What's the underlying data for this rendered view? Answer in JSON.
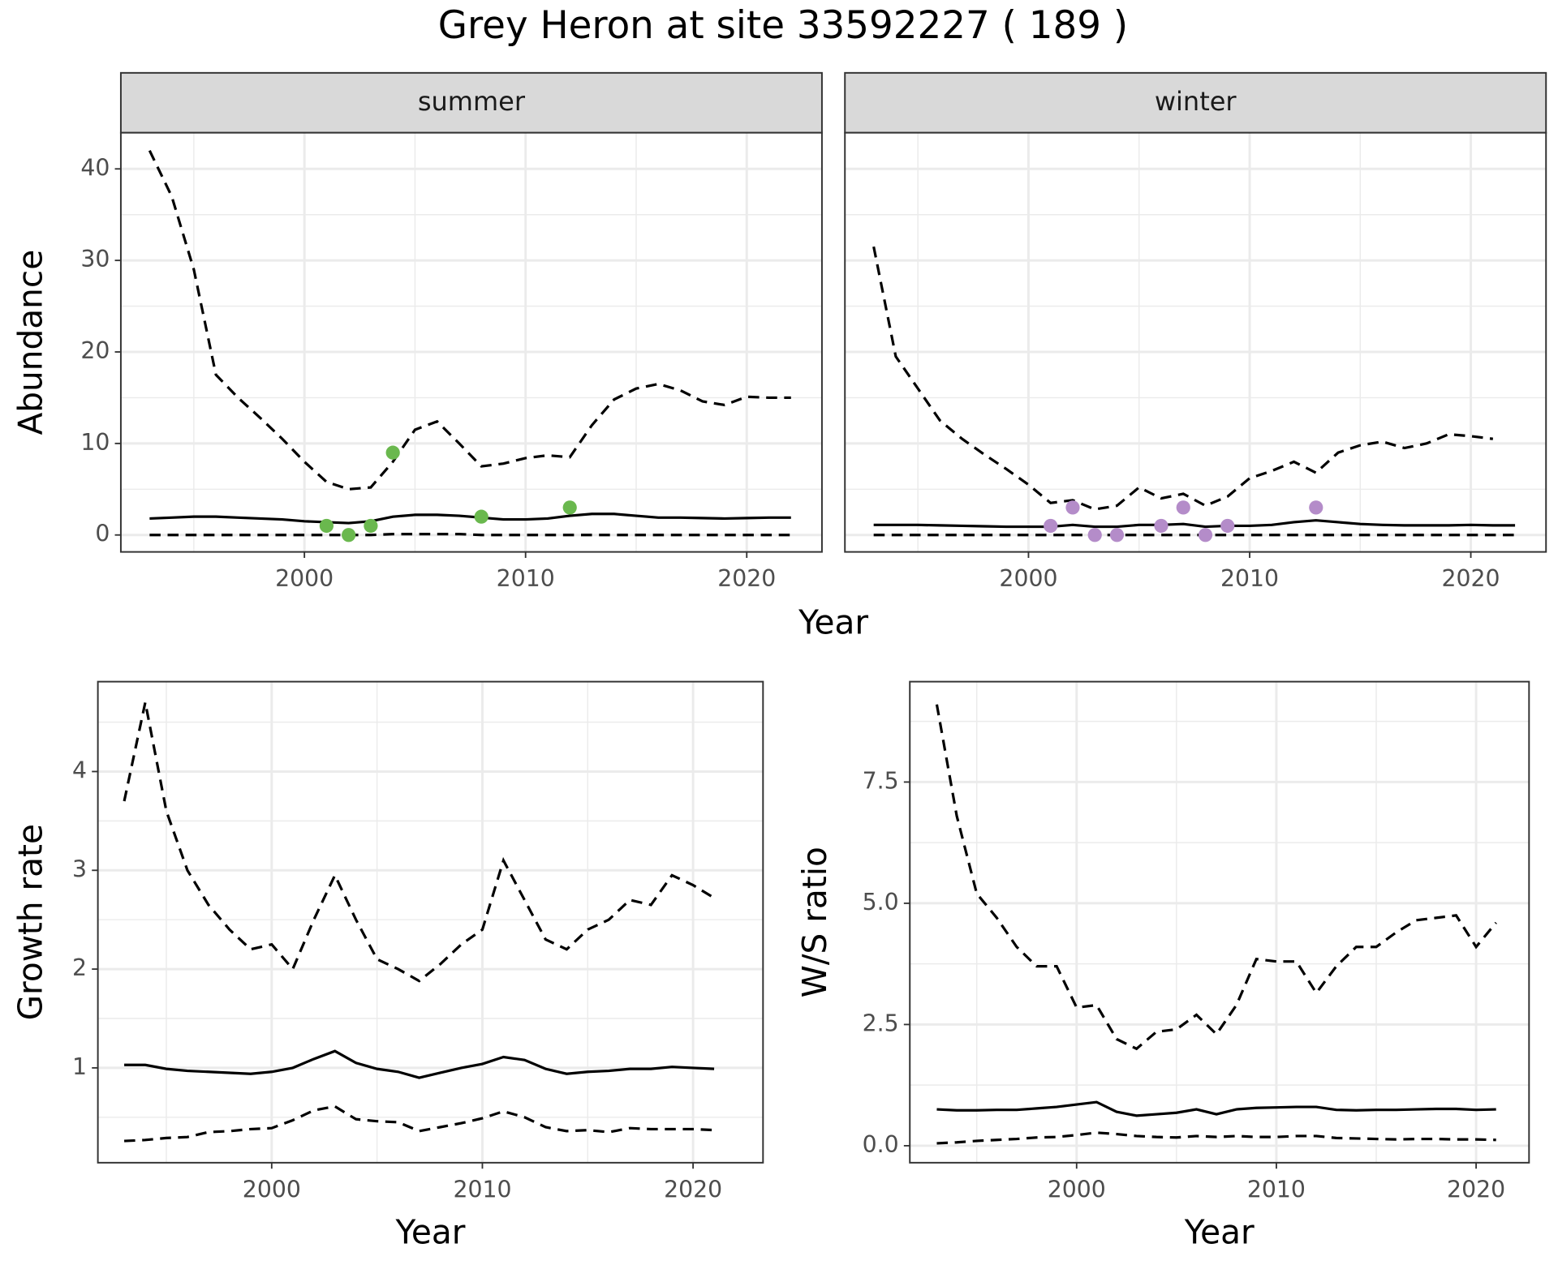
{
  "title": "Grey Heron at site 33592227 ( 189 )",
  "chart_data": [
    {
      "type": "line",
      "xlabel": "Year",
      "ylabel": "Abundance",
      "xlim": [
        1991.7,
        2023.4
      ],
      "xticks": [
        2000,
        2010,
        2020
      ],
      "ylim": [
        -1.85,
        43.95
      ],
      "yticks": [
        0,
        10,
        20,
        30,
        40
      ],
      "grid": true,
      "facets": [
        {
          "title": "summer",
          "series": [
            {
              "style": "dashed",
              "color": "#000000",
              "x": [
                1993,
                1994,
                1995,
                1996,
                1997,
                1998,
                1999,
                2000,
                2001,
                2002,
                2003,
                2004,
                2005,
                2006,
                2007,
                2008,
                2009,
                2010,
                2011,
                2012,
                2013,
                2014,
                2015,
                2016,
                2017,
                2018,
                2019,
                2020,
                2021,
                2022
              ],
              "values": [
                42,
                37,
                29,
                17.5,
                15,
                12.8,
                10.5,
                8,
                5.8,
                5,
                5.2,
                8,
                11.5,
                12.4,
                10,
                7.5,
                7.8,
                8.4,
                8.7,
                8.5,
                12,
                14.8,
                16,
                16.5,
                15.8,
                14.6,
                14.2,
                15.1,
                15,
                15
              ]
            },
            {
              "style": "solid",
              "color": "#000000",
              "x": [
                1993,
                1994,
                1995,
                1996,
                1997,
                1998,
                1999,
                2000,
                2001,
                2002,
                2003,
                2004,
                2005,
                2006,
                2007,
                2008,
                2009,
                2010,
                2011,
                2012,
                2013,
                2014,
                2015,
                2016,
                2017,
                2018,
                2019,
                2020,
                2021,
                2022
              ],
              "values": [
                1.8,
                1.9,
                2,
                2,
                1.9,
                1.8,
                1.7,
                1.5,
                1.4,
                1.3,
                1.5,
                2,
                2.2,
                2.2,
                2.1,
                1.9,
                1.7,
                1.7,
                1.8,
                2.1,
                2.3,
                2.3,
                2.1,
                1.9,
                1.9,
                1.85,
                1.8,
                1.85,
                1.9,
                1.9
              ]
            },
            {
              "style": "dashed",
              "color": "#000000",
              "x": [
                1993,
                1994,
                1995,
                1996,
                1997,
                1998,
                1999,
                2000,
                2001,
                2002,
                2003,
                2004,
                2005,
                2006,
                2007,
                2008,
                2009,
                2010,
                2011,
                2012,
                2013,
                2014,
                2015,
                2016,
                2017,
                2018,
                2019,
                2020,
                2021,
                2022
              ],
              "values": [
                0,
                0,
                0,
                0,
                0,
                0,
                0,
                0,
                0,
                0,
                0,
                0.1,
                0.1,
                0.1,
                0.1,
                0,
                0,
                0,
                0,
                0,
                0,
                0,
                0,
                0,
                0,
                0,
                0,
                0,
                0,
                0
              ]
            },
            {
              "style": "points",
              "color": "#6ab84e",
              "x": [
                2001,
                2002,
                2003,
                2004,
                2008,
                2012
              ],
              "values": [
                1,
                0,
                1,
                9,
                2,
                3
              ]
            }
          ]
        },
        {
          "title": "winter",
          "series": [
            {
              "style": "dashed",
              "color": "#000000",
              "x": [
                1993,
                1994,
                1995,
                1996,
                1997,
                1998,
                1999,
                2000,
                2001,
                2002,
                2003,
                2004,
                2005,
                2006,
                2007,
                2008,
                2009,
                2010,
                2011,
                2012,
                2013,
                2014,
                2015,
                2016,
                2017,
                2018,
                2019,
                2020,
                2021
              ],
              "values": [
                31.5,
                19.5,
                16,
                12.5,
                10.5,
                8.8,
                7.2,
                5.5,
                3.5,
                3.8,
                2.8,
                3.2,
                5.2,
                4,
                4.5,
                3.2,
                4.2,
                6.2,
                7,
                8,
                6.8,
                9,
                9.8,
                10.2,
                9.5,
                10,
                11,
                10.8,
                10.5
              ]
            },
            {
              "style": "solid",
              "color": "#000000",
              "x": [
                1993,
                1994,
                1995,
                1996,
                1997,
                1998,
                1999,
                2000,
                2001,
                2002,
                2003,
                2004,
                2005,
                2006,
                2007,
                2008,
                2009,
                2010,
                2011,
                2012,
                2013,
                2014,
                2015,
                2016,
                2017,
                2018,
                2019,
                2020,
                2021,
                2022
              ],
              "values": [
                1.1,
                1.1,
                1.1,
                1.05,
                1,
                0.95,
                0.9,
                0.9,
                0.9,
                1.1,
                0.9,
                0.9,
                1.1,
                1.1,
                1.2,
                0.9,
                1,
                1,
                1.1,
                1.4,
                1.6,
                1.4,
                1.2,
                1.1,
                1.05,
                1.05,
                1.05,
                1.1,
                1.05,
                1.05
              ]
            },
            {
              "style": "dashed",
              "color": "#000000",
              "x": [
                1993,
                1994,
                1995,
                1996,
                1997,
                1998,
                1999,
                2000,
                2001,
                2002,
                2003,
                2004,
                2005,
                2006,
                2007,
                2008,
                2009,
                2010,
                2011,
                2012,
                2013,
                2014,
                2015,
                2016,
                2017,
                2018,
                2019,
                2020,
                2021,
                2022
              ],
              "values": [
                0,
                0,
                0,
                0,
                0,
                0,
                0,
                0,
                0,
                0,
                0,
                0,
                0,
                0,
                0,
                0,
                0,
                0,
                0,
                0,
                0,
                0,
                0,
                0,
                0,
                0,
                0,
                0,
                0,
                0
              ]
            },
            {
              "style": "points",
              "color": "#b48cc9",
              "x": [
                2001,
                2002,
                2003,
                2004,
                2006,
                2007,
                2008,
                2009,
                2013
              ],
              "values": [
                1,
                3,
                0,
                0,
                1,
                3,
                0,
                1,
                3
              ]
            }
          ]
        }
      ]
    },
    {
      "type": "line",
      "xlabel": "Year",
      "ylabel": "Growth rate",
      "xlim": [
        1991.75,
        2023.32
      ],
      "xticks": [
        2000,
        2010,
        2020
      ],
      "ylim": [
        0.04,
        4.91
      ],
      "yticks": [
        1,
        2,
        3,
        4
      ],
      "grid": true,
      "series": [
        {
          "style": "dashed",
          "color": "#000000",
          "x": [
            1993,
            1994,
            1995,
            1996,
            1997,
            1998,
            1999,
            2000,
            2001,
            2002,
            2003,
            2004,
            2005,
            2006,
            2007,
            2008,
            2009,
            2010,
            2011,
            2012,
            2013,
            2014,
            2015,
            2016,
            2017,
            2018,
            2019,
            2020,
            2021
          ],
          "values": [
            3.7,
            4.7,
            3.6,
            3.0,
            2.65,
            2.4,
            2.2,
            2.25,
            2.0,
            2.5,
            2.95,
            2.5,
            2.1,
            2.0,
            1.88,
            2.05,
            2.25,
            2.4,
            3.1,
            2.7,
            2.3,
            2.2,
            2.4,
            2.5,
            2.7,
            2.65,
            2.95,
            2.85,
            2.72
          ]
        },
        {
          "style": "solid",
          "color": "#000000",
          "x": [
            1993,
            1994,
            1995,
            1996,
            1997,
            1998,
            1999,
            2000,
            2001,
            2002,
            2003,
            2004,
            2005,
            2006,
            2007,
            2008,
            2009,
            2010,
            2011,
            2012,
            2013,
            2014,
            2015,
            2016,
            2017,
            2018,
            2019,
            2020,
            2021
          ],
          "values": [
            1.03,
            1.03,
            0.99,
            0.97,
            0.96,
            0.95,
            0.94,
            0.96,
            1.0,
            1.09,
            1.17,
            1.05,
            0.99,
            0.96,
            0.9,
            0.95,
            1.0,
            1.04,
            1.11,
            1.08,
            0.99,
            0.94,
            0.96,
            0.97,
            0.99,
            0.99,
            1.01,
            1.0,
            0.99
          ]
        },
        {
          "style": "dashed",
          "color": "#000000",
          "x": [
            1993,
            1994,
            1995,
            1996,
            1997,
            1998,
            1999,
            2000,
            2001,
            2002,
            2003,
            2004,
            2005,
            2006,
            2007,
            2008,
            2009,
            2010,
            2011,
            2012,
            2013,
            2014,
            2015,
            2016,
            2017,
            2018,
            2019,
            2020,
            2021
          ],
          "values": [
            0.26,
            0.27,
            0.29,
            0.3,
            0.35,
            0.36,
            0.38,
            0.39,
            0.47,
            0.57,
            0.61,
            0.48,
            0.46,
            0.45,
            0.36,
            0.4,
            0.44,
            0.49,
            0.56,
            0.5,
            0.4,
            0.36,
            0.37,
            0.35,
            0.39,
            0.38,
            0.38,
            0.38,
            0.37
          ]
        }
      ]
    },
    {
      "type": "line",
      "xlabel": "Year",
      "ylabel": "W/S ratio",
      "xlim": [
        1991.65,
        2022.65
      ],
      "xticks": [
        2000,
        2010,
        2020
      ],
      "ylim": [
        -0.35,
        9.57
      ],
      "yticks": [
        {
          "value": 0,
          "label": "0.0"
        },
        2.5,
        {
          "value": 5,
          "label": "5.0"
        },
        7.5
      ],
      "grid": true,
      "series": [
        {
          "style": "dashed",
          "color": "#000000",
          "x": [
            1993,
            1994,
            1995,
            1996,
            1997,
            1998,
            1999,
            2000,
            2001,
            2002,
            2003,
            2004,
            2005,
            2006,
            2007,
            2008,
            2009,
            2010,
            2011,
            2012,
            2013,
            2014,
            2015,
            2016,
            2017,
            2018,
            2019,
            2020,
            2021
          ],
          "values": [
            9.1,
            6.8,
            5.2,
            4.7,
            4.1,
            3.7,
            3.7,
            2.85,
            2.9,
            2.2,
            2.0,
            2.35,
            2.4,
            2.7,
            2.3,
            2.9,
            3.85,
            3.8,
            3.8,
            3.15,
            3.7,
            4.1,
            4.1,
            4.4,
            4.65,
            4.7,
            4.75,
            4.1,
            4.6
          ]
        },
        {
          "style": "solid",
          "color": "#000000",
          "x": [
            1993,
            1994,
            1995,
            1996,
            1997,
            1998,
            1999,
            2000,
            2001,
            2002,
            2003,
            2004,
            2005,
            2006,
            2007,
            2008,
            2009,
            2010,
            2011,
            2012,
            2013,
            2014,
            2015,
            2016,
            2017,
            2018,
            2019,
            2020,
            2021
          ],
          "values": [
            0.75,
            0.73,
            0.73,
            0.74,
            0.74,
            0.77,
            0.8,
            0.85,
            0.9,
            0.7,
            0.62,
            0.65,
            0.68,
            0.75,
            0.65,
            0.75,
            0.78,
            0.79,
            0.8,
            0.8,
            0.74,
            0.73,
            0.74,
            0.74,
            0.75,
            0.76,
            0.76,
            0.74,
            0.75
          ]
        },
        {
          "style": "dashed",
          "color": "#000000",
          "x": [
            1993,
            1994,
            1995,
            1996,
            1997,
            1998,
            1999,
            2000,
            2001,
            2002,
            2003,
            2004,
            2005,
            2006,
            2007,
            2008,
            2009,
            2010,
            2011,
            2012,
            2013,
            2014,
            2015,
            2016,
            2017,
            2018,
            2019,
            2020,
            2021
          ],
          "values": [
            0.05,
            0.07,
            0.1,
            0.12,
            0.14,
            0.17,
            0.18,
            0.22,
            0.27,
            0.24,
            0.2,
            0.18,
            0.17,
            0.2,
            0.18,
            0.2,
            0.18,
            0.18,
            0.2,
            0.2,
            0.16,
            0.15,
            0.14,
            0.13,
            0.14,
            0.14,
            0.13,
            0.13,
            0.12
          ]
        }
      ]
    }
  ]
}
